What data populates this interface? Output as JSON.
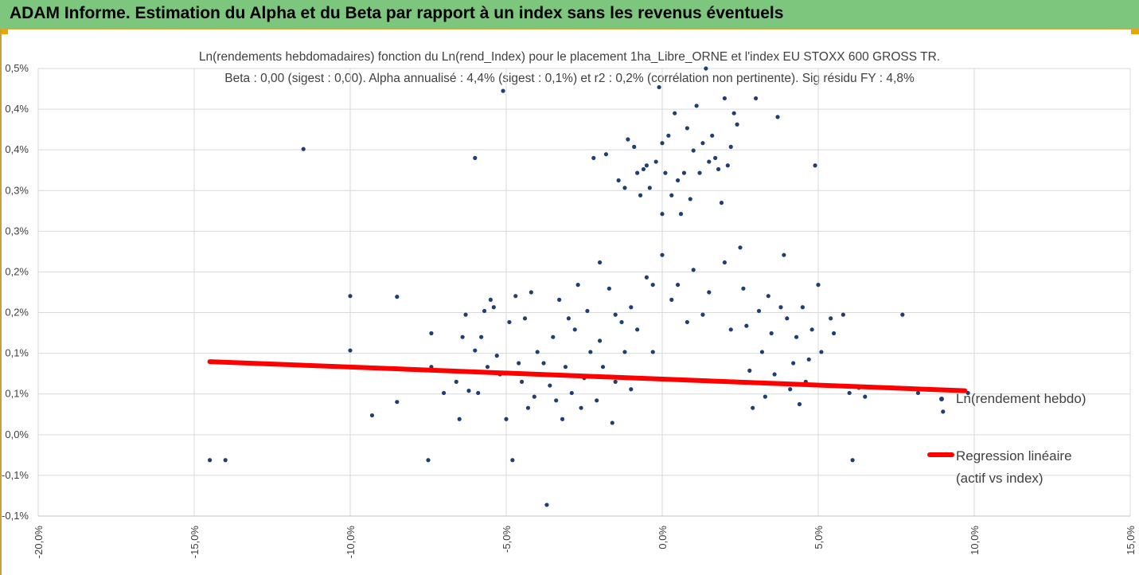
{
  "header": {
    "title": "ADAM Informe. Estimation du Alpha et du Beta par rapport à un index sans les revenus éventuels"
  },
  "colors": {
    "banner": "#7dc67e",
    "points": "#1f3f73",
    "regression": "#ff0000",
    "grid": "#d9d9d9"
  },
  "chart_data": {
    "type": "scatter",
    "title_line1": "Ln(rendements hebdomadaires) fonction du Ln(rend_Index) pour le placement 1ha_Libre_ORNE et l'index EU STOXX 600 GROSS TR.",
    "title_line2": "Beta : 0,00 (sigest : 0,00). Alpha annualisé : 4,4% (sigest : 0,1%) et r2 : 0,2% (corrélation non pertinente). Sig résidu FY : 4,8%",
    "xlabel": "",
    "ylabel": "",
    "xlim": [
      -20,
      15
    ],
    "ylim": [
      -0.1,
      0.5
    ],
    "grid": true,
    "legend_placement": "right",
    "x_tick_labels": [
      "-20,0%",
      "-15,0%",
      "-10,0%",
      "-5,0%",
      "0,0%",
      "5,0%",
      "10,0%",
      "15,0%"
    ],
    "y_tick_labels": [
      "-0,1%",
      "-0,1%",
      "0,0%",
      "0,1%",
      "0,1%",
      "0,2%",
      "0,2%",
      "0,3%",
      "0,3%",
      "0,4%",
      "0,4%",
      "0,5%"
    ],
    "series": [
      {
        "name": "Ln(rendement hebdo)",
        "kind": "points",
        "points": [
          [
            -14.5,
            -0.025
          ],
          [
            -14.0,
            -0.025
          ],
          [
            -11.5,
            0.392
          ],
          [
            -10.0,
            0.195
          ],
          [
            -10.0,
            0.122
          ],
          [
            -9.3,
            0.035
          ],
          [
            -8.5,
            0.194
          ],
          [
            -8.5,
            0.053
          ],
          [
            -7.5,
            -0.025
          ],
          [
            -7.4,
            0.145
          ],
          [
            -7.4,
            0.1
          ],
          [
            -7.0,
            0.065
          ],
          [
            -6.6,
            0.08
          ],
          [
            -6.5,
            0.03
          ],
          [
            -6.4,
            0.14
          ],
          [
            -6.3,
            0.17
          ],
          [
            -6.2,
            0.068
          ],
          [
            -6.0,
            0.38
          ],
          [
            -6.0,
            0.122
          ],
          [
            -5.9,
            0.065
          ],
          [
            -5.8,
            0.14
          ],
          [
            -5.7,
            0.175
          ],
          [
            -5.6,
            0.1
          ],
          [
            -5.5,
            0.19
          ],
          [
            -5.4,
            0.18
          ],
          [
            -5.3,
            0.115
          ],
          [
            -5.2,
            0.09
          ],
          [
            -5.1,
            0.47
          ],
          [
            -5.0,
            0.03
          ],
          [
            -4.9,
            0.16
          ],
          [
            -4.8,
            -0.025
          ],
          [
            -4.7,
            0.195
          ],
          [
            -4.6,
            0.105
          ],
          [
            -4.5,
            0.08
          ],
          [
            -4.4,
            0.165
          ],
          [
            -4.3,
            0.045
          ],
          [
            -4.2,
            0.2
          ],
          [
            -4.1,
            0.06
          ],
          [
            -4.0,
            0.12
          ],
          [
            -3.9,
            0.09
          ],
          [
            -3.8,
            0.105
          ],
          [
            -3.7,
            -0.085
          ],
          [
            -3.6,
            0.075
          ],
          [
            -3.5,
            0.14
          ],
          [
            -3.4,
            0.055
          ],
          [
            -3.3,
            0.19
          ],
          [
            -3.2,
            0.03
          ],
          [
            -3.1,
            0.1
          ],
          [
            -3.0,
            0.165
          ],
          [
            -2.9,
            0.065
          ],
          [
            -2.8,
            0.15
          ],
          [
            -2.7,
            0.21
          ],
          [
            -2.6,
            0.045
          ],
          [
            -2.5,
            0.085
          ],
          [
            -2.4,
            0.175
          ],
          [
            -2.3,
            0.12
          ],
          [
            -2.2,
            0.38
          ],
          [
            -2.1,
            0.055
          ],
          [
            -2.0,
            0.135
          ],
          [
            -1.9,
            0.1
          ],
          [
            -1.8,
            0.385
          ],
          [
            -1.7,
            0.205
          ],
          [
            -1.6,
            0.025
          ],
          [
            -1.5,
            0.08
          ],
          [
            -1.4,
            0.35
          ],
          [
            -1.3,
            0.16
          ],
          [
            -1.2,
            0.34
          ],
          [
            -1.1,
            0.405
          ],
          [
            -1.0,
            0.07
          ],
          [
            -0.9,
            0.395
          ],
          [
            -0.8,
            0.36
          ],
          [
            -0.7,
            0.33
          ],
          [
            -0.6,
            0.365
          ],
          [
            -0.5,
            0.37
          ],
          [
            -0.4,
            0.34
          ],
          [
            -0.3,
            0.12
          ],
          [
            -0.2,
            0.375
          ],
          [
            -0.1,
            0.475
          ],
          [
            0.0,
            0.305
          ],
          [
            0.0,
            0.4
          ],
          [
            0.1,
            0.36
          ],
          [
            0.2,
            0.41
          ],
          [
            0.3,
            0.33
          ],
          [
            0.4,
            0.44
          ],
          [
            0.5,
            0.35
          ],
          [
            0.6,
            0.305
          ],
          [
            0.7,
            0.36
          ],
          [
            0.8,
            0.42
          ],
          [
            0.9,
            0.325
          ],
          [
            1.0,
            0.39
          ],
          [
            1.1,
            0.45
          ],
          [
            1.2,
            0.36
          ],
          [
            1.3,
            0.4
          ],
          [
            1.4,
            0.5
          ],
          [
            1.5,
            0.375
          ],
          [
            1.6,
            0.41
          ],
          [
            1.7,
            0.38
          ],
          [
            1.8,
            0.365
          ],
          [
            1.9,
            0.32
          ],
          [
            2.0,
            0.46
          ],
          [
            2.1,
            0.37
          ],
          [
            2.2,
            0.395
          ],
          [
            2.3,
            0.44
          ],
          [
            2.4,
            0.425
          ],
          [
            2.5,
            0.26
          ],
          [
            2.6,
            0.205
          ],
          [
            2.7,
            0.155
          ],
          [
            2.8,
            0.095
          ],
          [
            2.9,
            0.045
          ],
          [
            3.0,
            0.46
          ],
          [
            3.1,
            0.175
          ],
          [
            3.2,
            0.12
          ],
          [
            3.3,
            0.06
          ],
          [
            3.4,
            0.195
          ],
          [
            3.5,
            0.145
          ],
          [
            3.6,
            0.09
          ],
          [
            3.7,
            0.435
          ],
          [
            3.8,
            0.18
          ],
          [
            3.9,
            0.25
          ],
          [
            4.0,
            0.165
          ],
          [
            4.1,
            0.07
          ],
          [
            4.2,
            0.105
          ],
          [
            4.3,
            0.14
          ],
          [
            4.4,
            0.05
          ],
          [
            4.5,
            0.18
          ],
          [
            4.6,
            0.08
          ],
          [
            4.7,
            0.11
          ],
          [
            4.8,
            0.15
          ],
          [
            4.9,
            0.37
          ],
          [
            5.0,
            0.21
          ],
          [
            5.1,
            0.12
          ],
          [
            5.3,
            0.075
          ],
          [
            5.4,
            0.165
          ],
          [
            5.5,
            0.145
          ],
          [
            5.8,
            0.17
          ],
          [
            6.0,
            0.065
          ],
          [
            6.1,
            -0.025
          ],
          [
            6.3,
            0.072
          ],
          [
            6.5,
            0.06
          ],
          [
            7.7,
            0.17
          ],
          [
            8.2,
            0.065
          ],
          [
            9.0,
            0.04
          ],
          [
            9.8,
            0.065
          ],
          [
            -1.0,
            0.18
          ],
          [
            -0.5,
            0.22
          ],
          [
            0.0,
            0.25
          ],
          [
            0.5,
            0.21
          ],
          [
            1.0,
            0.23
          ],
          [
            1.5,
            0.2
          ],
          [
            2.0,
            0.24
          ],
          [
            -2.0,
            0.24
          ],
          [
            -1.5,
            0.17
          ],
          [
            -0.3,
            0.21
          ],
          [
            0.3,
            0.19
          ],
          [
            0.8,
            0.16
          ],
          [
            -0.8,
            0.15
          ],
          [
            1.3,
            0.17
          ],
          [
            -1.2,
            0.12
          ],
          [
            2.2,
            0.15
          ]
        ]
      },
      {
        "name": "Regression linéaire",
        "name_line2": "(actif vs index)",
        "kind": "line",
        "x": [
          -14.5,
          9.7
        ],
        "y": [
          0.107,
          0.068
        ]
      }
    ]
  }
}
